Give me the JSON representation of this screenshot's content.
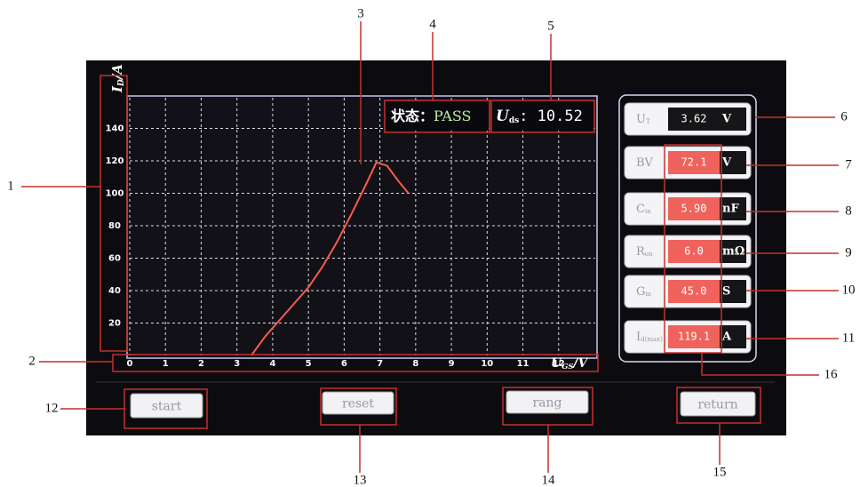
{
  "chart_data": {
    "type": "line",
    "y_label": {
      "main": "I",
      "sub": "D",
      "unit": "/A"
    },
    "x_label": {
      "main": "U",
      "sub": "GS",
      "unit": "/V"
    },
    "x": [
      3.4,
      3.8,
      4.2,
      4.6,
      5.0,
      5.4,
      5.8,
      6.2,
      6.6,
      6.9,
      7.2,
      7.5,
      7.8
    ],
    "series": [
      {
        "color": "#ff5a4a",
        "values": [
          0,
          12,
          22,
          32,
          42,
          55,
          70,
          87,
          105,
          119,
          117,
          108,
          100
        ]
      }
    ],
    "xlim": [
      0,
      13
    ],
    "xticks": [
      0,
      1,
      2,
      3,
      4,
      5,
      6,
      7,
      8,
      9,
      10,
      11,
      12
    ],
    "ylim": [
      0,
      160
    ],
    "yticks": [
      20,
      40,
      60,
      80,
      100,
      120,
      140
    ],
    "grid": true
  },
  "status": {
    "label": "状态：",
    "value": "PASS"
  },
  "uds": {
    "main": "U",
    "sub": "ds",
    "value": ": 10.52"
  },
  "params": [
    {
      "main": "U",
      "sub": "T",
      "value": "3.62",
      "unit": "V",
      "value_color": "#161618"
    },
    {
      "main": "BV",
      "sub": "",
      "value": "72.1",
      "unit": "V",
      "value_color": "#f0625c"
    },
    {
      "main": "C",
      "sub": "in",
      "value": "5.90",
      "unit": "nF",
      "value_color": "#f0625c"
    },
    {
      "main": "R",
      "sub": "on",
      "value": "6.0",
      "unit": "mΩ",
      "value_color": "#f0625c"
    },
    {
      "main": "G",
      "sub": "m",
      "value": "45.0",
      "unit": "S",
      "value_color": "#f0625c"
    },
    {
      "main": "I",
      "sub": "d(max)",
      "value": "119.1",
      "unit": "A",
      "value_color": "#f0625c"
    }
  ],
  "buttons": [
    "start",
    "reset",
    "rang",
    "return"
  ],
  "callouts": [
    "1",
    "2",
    "3",
    "4",
    "5",
    "6",
    "7",
    "8",
    "9",
    "10",
    "11",
    "12",
    "13",
    "14",
    "15",
    "16"
  ]
}
